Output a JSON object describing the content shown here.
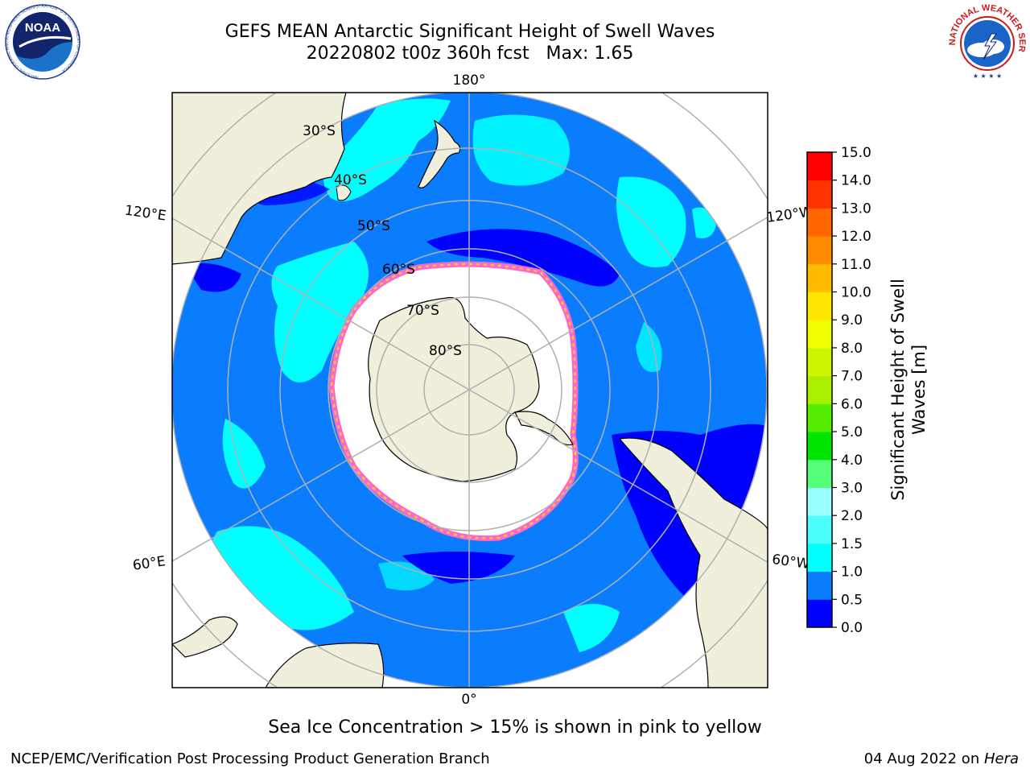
{
  "header": {
    "title_line1": "GEFS MEAN Antarctic Significant Height of Swell Waves",
    "title_line2": "20220802 t00z 360h fcst   Max: 1.65"
  },
  "logos": {
    "noaa_text": "NOAA",
    "nws_ring_text": "NATIONAL WEATHER SERVICE"
  },
  "map": {
    "projection": "south-polar-stereographic",
    "longitude_labels": {
      "top": "180°",
      "bottom": "0°",
      "left_upper": "120°E",
      "left_lower": "60°E",
      "right_upper": "120°W",
      "right_lower": "60°W"
    },
    "latitude_labels": [
      "30°S",
      "40°S",
      "50°S",
      "60°S",
      "70°S",
      "80°S"
    ],
    "colors": {
      "land": "#efefdb",
      "ocean_base": "#0a7dff",
      "low_swell": "#0000ff",
      "swell_1_5": "#00ffff",
      "ice_pink": "#ff66cc",
      "ice_yellow": "#ffcc33",
      "graticule": "#b0b0b0"
    }
  },
  "colorbar": {
    "label_line1": "Significant Height of Swell",
    "label_line2": "Waves [m]",
    "ticks": [
      "0.0",
      "0.5",
      "1.0",
      "1.5",
      "2.0",
      "3.0",
      "4.0",
      "5.0",
      "6.0",
      "7.0",
      "8.0",
      "9.0",
      "10.0",
      "11.0",
      "12.0",
      "13.0",
      "14.0",
      "15.0"
    ],
    "colors": [
      "#0000ff",
      "#0a7dff",
      "#00ffff",
      "#4cffff",
      "#99ffff",
      "#55ff77",
      "#00e600",
      "#55ee00",
      "#aaee00",
      "#ccf500",
      "#f0ff00",
      "#ffe600",
      "#ffbb00",
      "#ff8c00",
      "#ff6600",
      "#ff3300",
      "#ff0000"
    ]
  },
  "note": "Sea Ice Concentration > 15% is shown in pink to yellow",
  "footer": {
    "left": "NCEP/EMC/Verification Post Processing Product Generation Branch",
    "right_date": "04 Aug 2022 on ",
    "right_machine": "Hera"
  }
}
